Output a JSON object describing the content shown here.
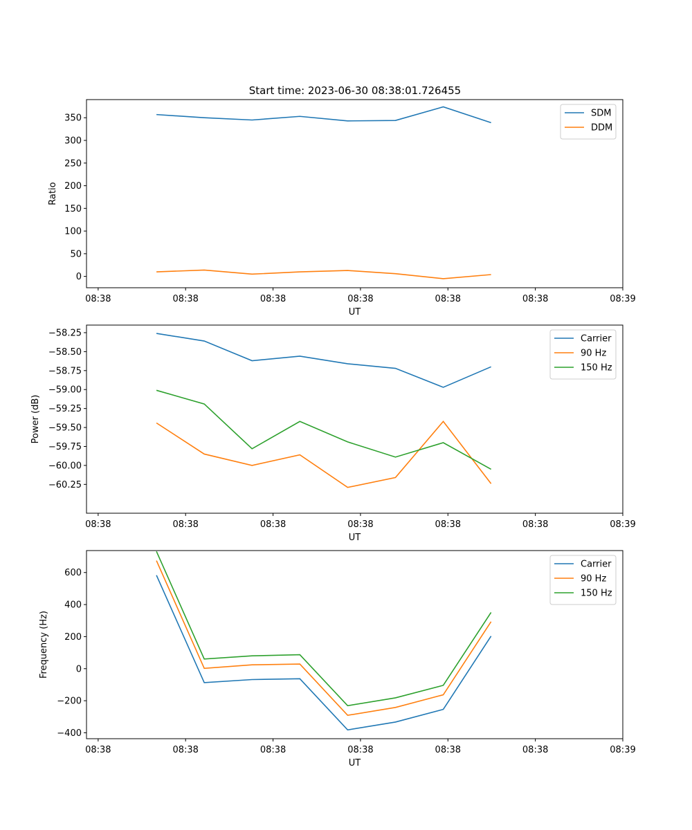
{
  "figure": {
    "title": "Start time: 2023-06-30 08:38:01.726455"
  },
  "chart_data": [
    {
      "type": "line",
      "xlabel": "UT",
      "ylabel": "Ratio",
      "x_tick_labels": [
        "08:38",
        "08:38",
        "08:38",
        "08:38",
        "08:38",
        "08:38",
        "08:39"
      ],
      "y_ticks": [
        0,
        50,
        100,
        150,
        200,
        250,
        300,
        350
      ],
      "ylim": [
        -25,
        390
      ],
      "legend_position": "upper-right",
      "x_points": [
        1,
        2,
        3,
        4,
        5,
        6,
        7,
        8
      ],
      "series": [
        {
          "name": "SDM",
          "color": "#1f77b4",
          "values": [
            357,
            350,
            345,
            353,
            343,
            344,
            374,
            339
          ]
        },
        {
          "name": "DDM",
          "color": "#ff7f0e",
          "values": [
            10,
            14,
            5,
            10,
            13,
            6,
            -5,
            4
          ]
        }
      ]
    },
    {
      "type": "line",
      "xlabel": "UT",
      "ylabel": "Power (dB)",
      "x_tick_labels": [
        "08:38",
        "08:38",
        "08:38",
        "08:38",
        "08:38",
        "08:38",
        "08:39"
      ],
      "y_ticks": [
        -60.25,
        -60.0,
        -59.75,
        -59.5,
        -59.25,
        -59.0,
        -58.75,
        -58.5,
        -58.25
      ],
      "y_tick_labels": [
        "−60.25",
        "−60.00",
        "−59.75",
        "−59.50",
        "−59.25",
        "−59.00",
        "−58.75",
        "−58.50",
        "−58.25"
      ],
      "ylim": [
        -60.63,
        -58.15
      ],
      "legend_position": "upper-right",
      "x_points": [
        1,
        2,
        3,
        4,
        5,
        6,
        7,
        8
      ],
      "series": [
        {
          "name": "Carrier",
          "color": "#1f77b4",
          "values": [
            -58.26,
            -58.36,
            -58.62,
            -58.56,
            -58.66,
            -58.72,
            -58.97,
            -58.7
          ]
        },
        {
          "name": "90 Hz",
          "color": "#ff7f0e",
          "values": [
            -59.44,
            -59.85,
            -60.0,
            -59.86,
            -60.29,
            -60.16,
            -59.42,
            -60.24
          ]
        },
        {
          "name": "150 Hz",
          "color": "#2ca02c",
          "values": [
            -59.01,
            -59.19,
            -59.78,
            -59.42,
            -59.69,
            -59.89,
            -59.7,
            -60.05
          ]
        }
      ]
    },
    {
      "type": "line",
      "xlabel": "UT",
      "ylabel": "Frequency (Hz)",
      "x_tick_labels": [
        "08:38",
        "08:38",
        "08:38",
        "08:38",
        "08:38",
        "08:38",
        "08:39"
      ],
      "y_ticks": [
        -400,
        -200,
        0,
        200,
        400,
        600
      ],
      "y_tick_labels": [
        "−400",
        "−200",
        "0",
        "200",
        "400",
        "600"
      ],
      "ylim": [
        -437,
        737
      ],
      "legend_position": "upper-right",
      "x_points": [
        1,
        2,
        3,
        4,
        5,
        6,
        7,
        8
      ],
      "series": [
        {
          "name": "Carrier",
          "color": "#1f77b4",
          "values": [
            583,
            -87,
            -68,
            -63,
            -382,
            -333,
            -254,
            203
          ]
        },
        {
          "name": "90 Hz",
          "color": "#ff7f0e",
          "values": [
            674,
            2,
            24,
            29,
            -291,
            -242,
            -163,
            293
          ]
        },
        {
          "name": "150 Hz",
          "color": "#2ca02c",
          "values": [
            732,
            60,
            80,
            87,
            -231,
            -182,
            -104,
            351
          ]
        }
      ]
    }
  ]
}
